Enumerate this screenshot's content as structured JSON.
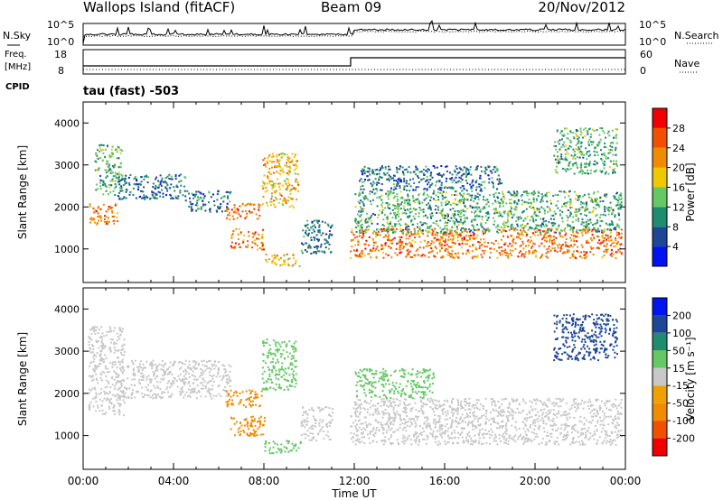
{
  "header": {
    "station": "Wallops Island (fitACF)",
    "beam": "Beam 09",
    "date": "20/Nov/2012"
  },
  "noise_panel": {
    "left_label": "N.Sky",
    "left_ticks": [
      "10^5",
      "10^0"
    ],
    "right_label": "N.Search",
    "right_ticks": [
      "10^5",
      "10^0"
    ]
  },
  "freq_panel": {
    "left_label_1": "Freq.",
    "left_label_2": "[MHz]",
    "left_ticks": [
      "18",
      "8"
    ],
    "cpid_label": "CPID",
    "right_label": "Nave",
    "right_ticks": [
      "60",
      "0"
    ],
    "cpid_text": "tau (fast) -503"
  },
  "colors": {
    "power_bins": [
      "#0014f0",
      "#1e4696",
      "#1e8c6e",
      "#64c864",
      "#f0c800",
      "#f08c00",
      "#f05000",
      "#f00000"
    ],
    "velocity_bins": [
      "#f00000",
      "#f05000",
      "#f08c00",
      "#f0a000",
      "#c8c8c8",
      "#64c864",
      "#1e8c6e",
      "#1e4696",
      "#0014f0"
    ]
  },
  "chart_data": [
    {
      "type": "heatmap",
      "name": "power",
      "ylabel": "Slant Range [km]",
      "yticks": [
        "1000",
        "2000",
        "3000",
        "4000"
      ],
      "ylim": [
        200,
        4500
      ],
      "xlim_hours": [
        0,
        24
      ],
      "colorbar": {
        "label": "Power [dB]",
        "ticks": [
          "4",
          "8",
          "12",
          "16",
          "20",
          "24",
          "28"
        ]
      },
      "regions": [
        {
          "t": [
            0.2,
            1.6
          ],
          "r": [
            1600,
            2100
          ],
          "value": 24
        },
        {
          "t": [
            0.5,
            1.7
          ],
          "r": [
            2300,
            3500
          ],
          "value": 12
        },
        {
          "t": [
            1.5,
            4.5
          ],
          "r": [
            2200,
            2800
          ],
          "value": 8
        },
        {
          "t": [
            4.5,
            6.5
          ],
          "r": [
            1900,
            2400
          ],
          "value": 8
        },
        {
          "t": [
            6.3,
            7.8
          ],
          "r": [
            1700,
            2100
          ],
          "value": 24
        },
        {
          "t": [
            6.5,
            8.0
          ],
          "r": [
            1000,
            1500
          ],
          "value": 24
        },
        {
          "t": [
            7.9,
            9.5
          ],
          "r": [
            2000,
            3300
          ],
          "value": 20
        },
        {
          "t": [
            8.0,
            9.6
          ],
          "r": [
            600,
            900
          ],
          "value": 20
        },
        {
          "t": [
            9.6,
            11.0
          ],
          "r": [
            900,
            1700
          ],
          "value": 8
        },
        {
          "t": [
            11.8,
            23.8
          ],
          "r": [
            800,
            1500
          ],
          "value": 24
        },
        {
          "t": [
            12.0,
            23.8
          ],
          "r": [
            1400,
            2400
          ],
          "value": 12
        },
        {
          "t": [
            12.2,
            18.5
          ],
          "r": [
            2400,
            3000
          ],
          "value": 8
        },
        {
          "t": [
            20.8,
            23.6
          ],
          "r": [
            2800,
            3900
          ],
          "value": 12
        }
      ]
    },
    {
      "type": "heatmap",
      "name": "velocity",
      "ylabel": "Slant Range [km]",
      "yticks": [
        "1000",
        "2000",
        "3000",
        "4000"
      ],
      "ylim": [
        200,
        4500
      ],
      "xlabel": "Time UT",
      "xticks": [
        "00:00",
        "04:00",
        "08:00",
        "12:00",
        "16:00",
        "20:00",
        "00:00"
      ],
      "xlim_hours": [
        0,
        24
      ],
      "colorbar": {
        "label": "Velocity [m s⁻¹]",
        "ticks": [
          "200",
          "100",
          "50",
          "15",
          "-15",
          "-50",
          "-100",
          "-200"
        ]
      },
      "regions": [
        {
          "t": [
            0.2,
            1.8
          ],
          "r": [
            1500,
            3600
          ],
          "value": 0
        },
        {
          "t": [
            1.5,
            6.5
          ],
          "r": [
            1900,
            2800
          ],
          "value": 0
        },
        {
          "t": [
            6.3,
            7.9
          ],
          "r": [
            1700,
            2100
          ],
          "value": -60
        },
        {
          "t": [
            6.5,
            8.0
          ],
          "r": [
            1000,
            1500
          ],
          "value": -60
        },
        {
          "t": [
            7.9,
            9.4
          ],
          "r": [
            2100,
            3300
          ],
          "value": 30
        },
        {
          "t": [
            8.0,
            9.6
          ],
          "r": [
            600,
            900
          ],
          "value": 30
        },
        {
          "t": [
            9.6,
            11.0
          ],
          "r": [
            900,
            1700
          ],
          "value": 0
        },
        {
          "t": [
            11.8,
            23.8
          ],
          "r": [
            800,
            1900
          ],
          "value": 0
        },
        {
          "t": [
            12.0,
            15.5
          ],
          "r": [
            1900,
            2600
          ],
          "value": 30
        },
        {
          "t": [
            20.8,
            23.6
          ],
          "r": [
            2800,
            3900
          ],
          "value": 150
        }
      ]
    }
  ]
}
